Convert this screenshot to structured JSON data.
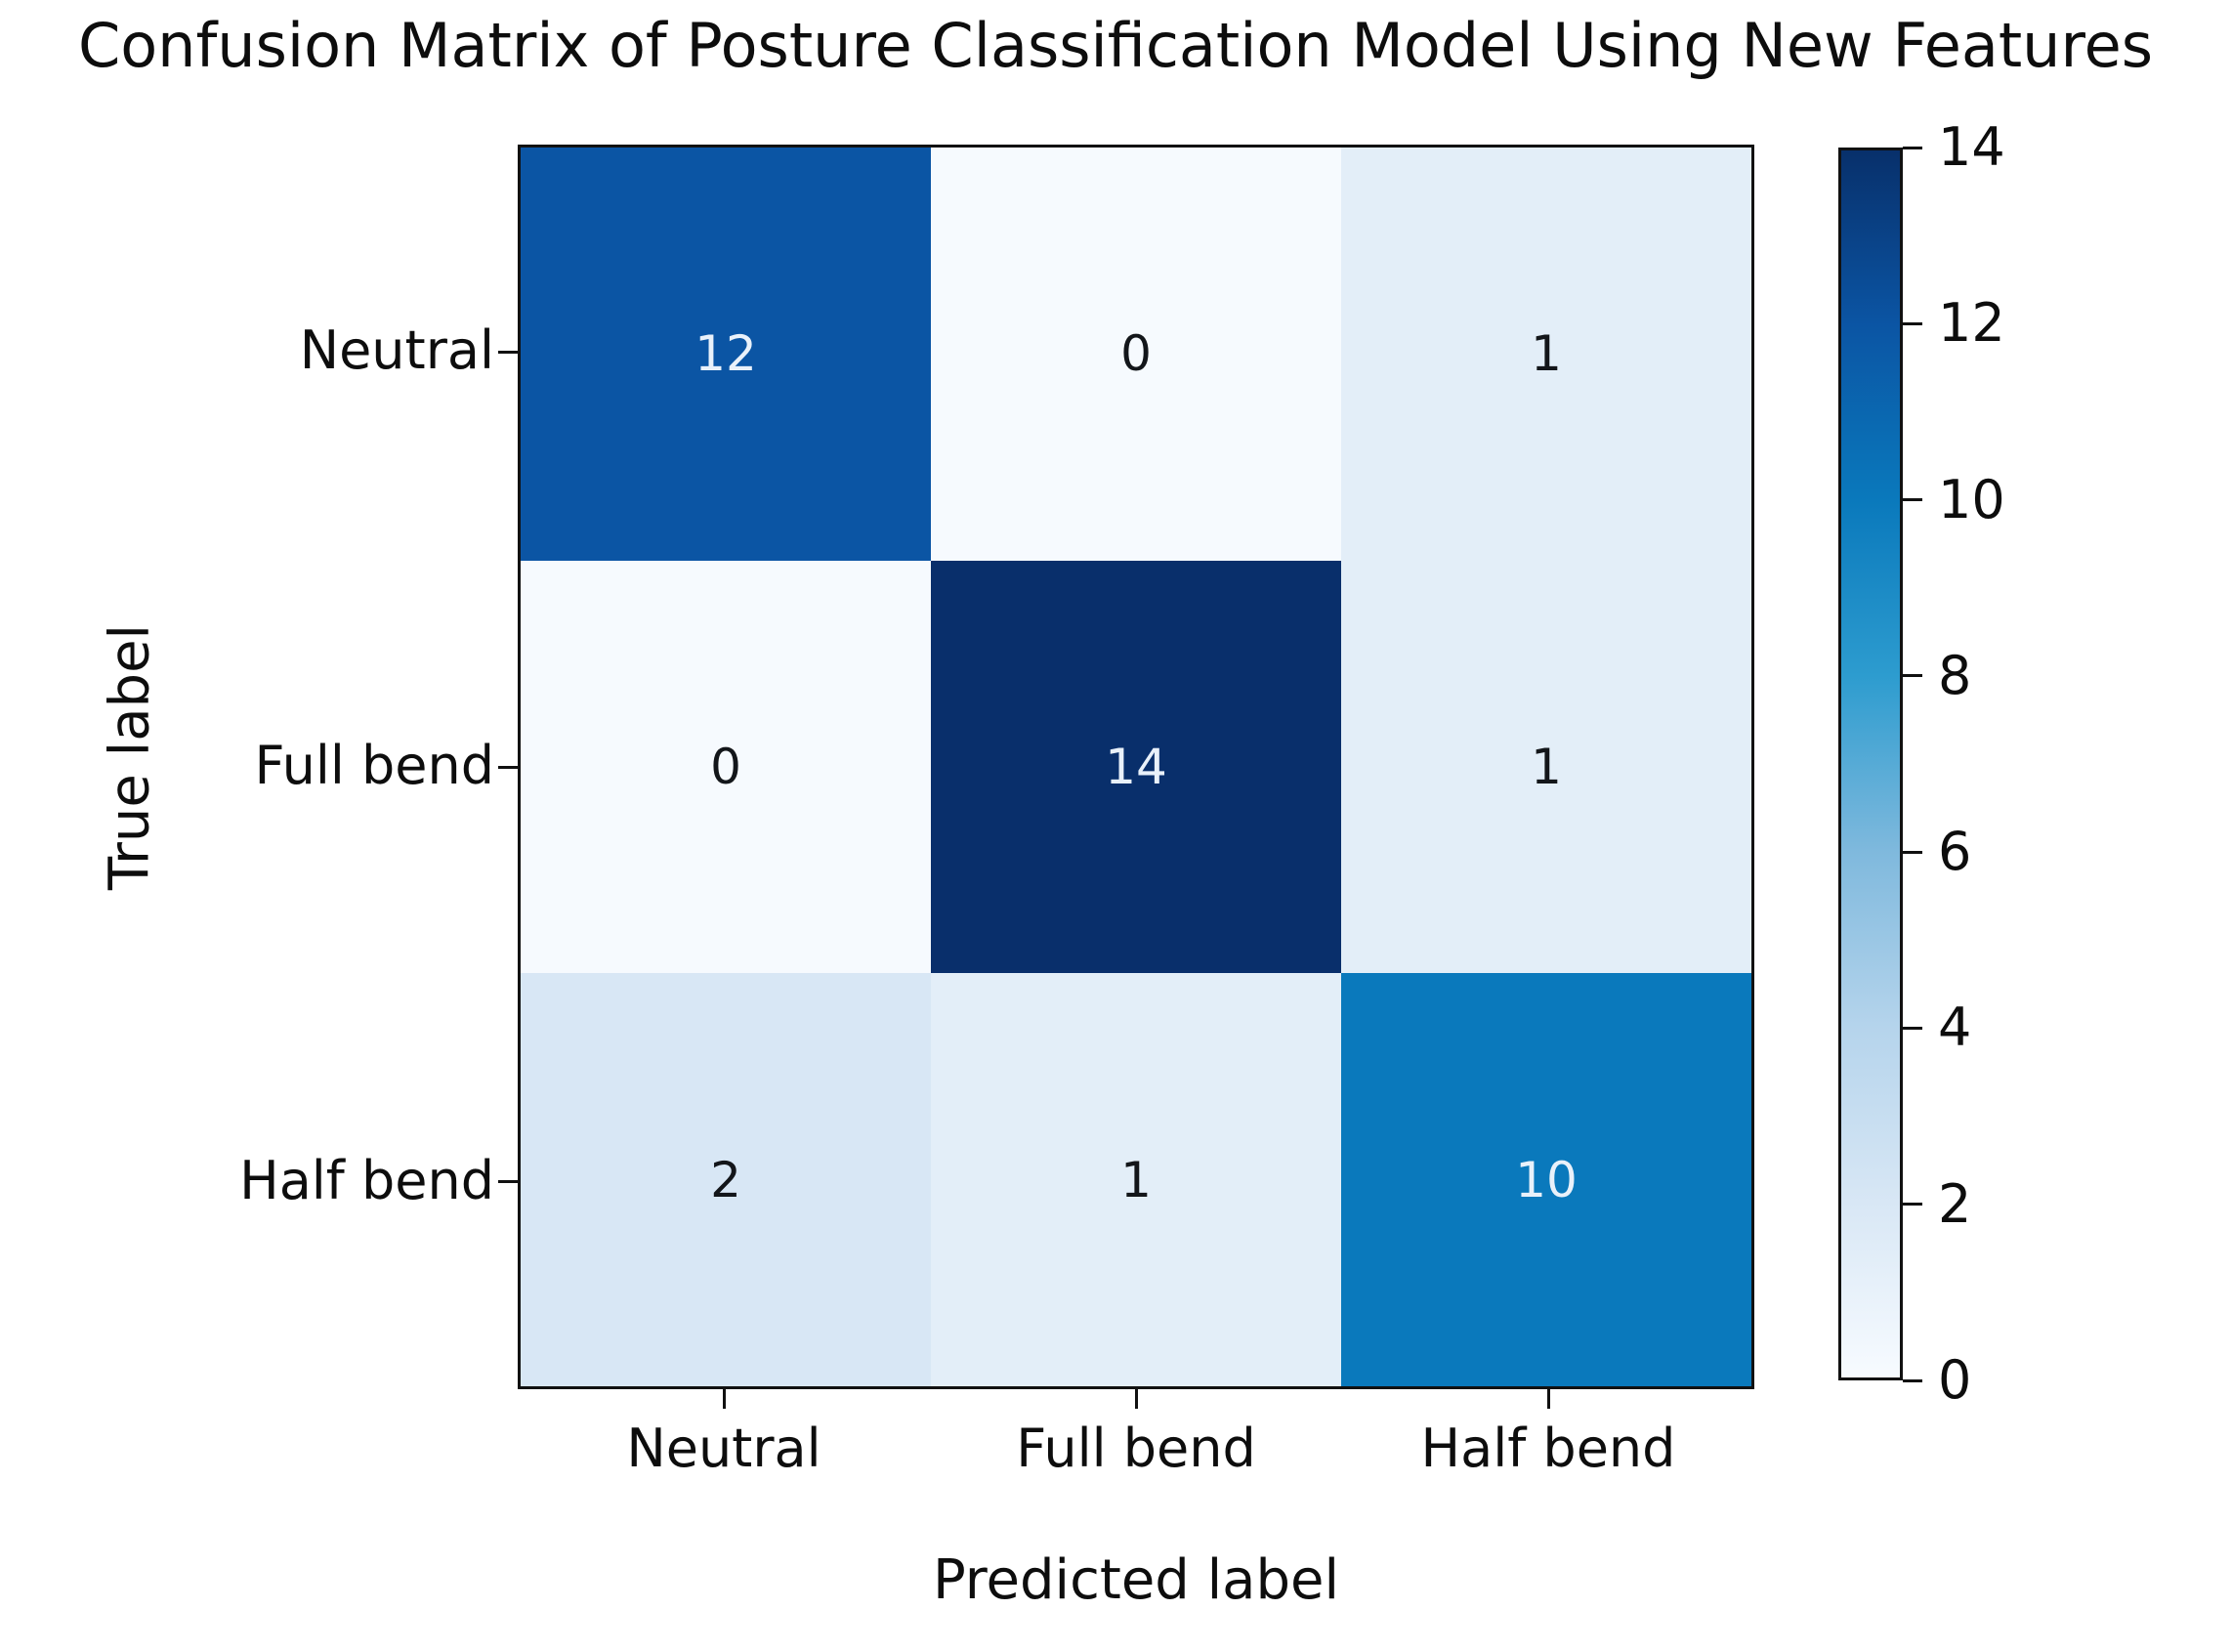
{
  "title": "Confusion Matrix of Posture Classification Model Using New Features",
  "axes": {
    "x_label": "Predicted label",
    "y_label": "True label"
  },
  "matrix": {
    "row_labels": [
      "Neutral",
      "Full bend",
      "Half bend"
    ],
    "col_labels": [
      "Neutral",
      "Full bend",
      "Half bend"
    ],
    "cells": [
      {
        "value": "12",
        "bg": "#0b55a4",
        "fg": "#e9f1fa"
      },
      {
        "value": "0",
        "bg": "#f6fafe",
        "fg": "#13161a"
      },
      {
        "value": "1",
        "bg": "#e3eef8",
        "fg": "#13161a"
      },
      {
        "value": "0",
        "bg": "#f6fafe",
        "fg": "#13161a"
      },
      {
        "value": "14",
        "bg": "#092f6b",
        "fg": "#e9f1fa"
      },
      {
        "value": "1",
        "bg": "#e3eef8",
        "fg": "#13161a"
      },
      {
        "value": "2",
        "bg": "#d8e7f5",
        "fg": "#13161a"
      },
      {
        "value": "1",
        "bg": "#e3eef8",
        "fg": "#13161a"
      },
      {
        "value": "10",
        "bg": "#0a79bc",
        "fg": "#e9f1fa"
      }
    ]
  },
  "colorbar": {
    "min": 0,
    "max": 14,
    "ticks": [
      "0",
      "2",
      "4",
      "6",
      "8",
      "10",
      "12",
      "14"
    ],
    "gradient": [
      "#f7fbff",
      "#d8e7f5",
      "#b5d4ec",
      "#7fb9dd",
      "#2d9ccf",
      "#0a79bc",
      "#0b55a4",
      "#08306b"
    ]
  },
  "chart_data": {
    "type": "heatmap",
    "title": "Confusion Matrix of Posture Classification Model Using New Features",
    "xlabel": "Predicted label",
    "ylabel": "True label",
    "x_categories": [
      "Neutral",
      "Full bend",
      "Half bend"
    ],
    "y_categories": [
      "Neutral",
      "Full bend",
      "Half bend"
    ],
    "values": [
      [
        12,
        0,
        1
      ],
      [
        0,
        14,
        1
      ],
      [
        2,
        1,
        10
      ]
    ],
    "colormap": "Blues",
    "colorbar_range": [
      0,
      14
    ],
    "colorbar_ticks": [
      0,
      2,
      4,
      6,
      8,
      10,
      12,
      14
    ],
    "legend_position": "right-colorbar",
    "grid": false
  }
}
